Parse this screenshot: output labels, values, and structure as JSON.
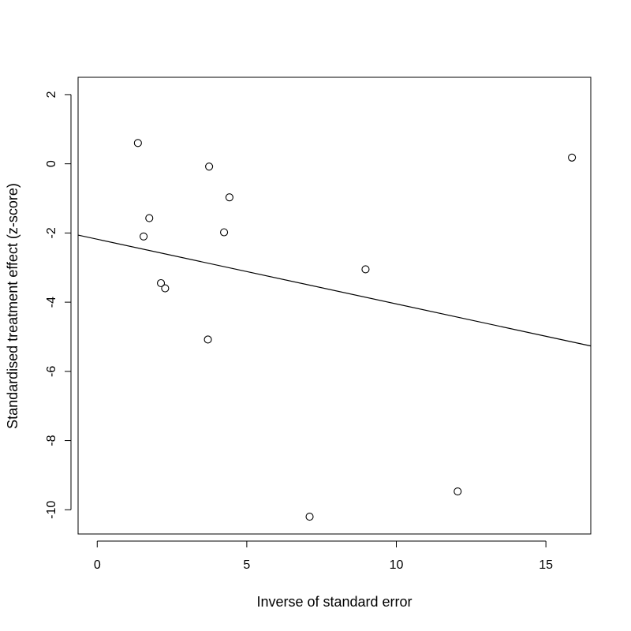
{
  "chart_data": {
    "type": "scatter",
    "title": "",
    "xlabel": "Inverse of standard error",
    "ylabel": "Standardised treatment effect (z-score)",
    "xlim": [
      -0.64,
      16.5
    ],
    "ylim": [
      -10.7,
      2.5
    ],
    "x_ticks": [
      0,
      5,
      10,
      15
    ],
    "y_ticks": [
      2,
      0,
      -2,
      -4,
      -6,
      -8,
      -10
    ],
    "grid": false,
    "legend": "none",
    "points": [
      {
        "x": 1.36,
        "y": 0.6
      },
      {
        "x": 1.74,
        "y": -1.57
      },
      {
        "x": 1.55,
        "y": -2.1
      },
      {
        "x": 2.13,
        "y": -3.45
      },
      {
        "x": 2.27,
        "y": -3.6
      },
      {
        "x": 3.74,
        "y": -0.08
      },
      {
        "x": 3.7,
        "y": -5.08
      },
      {
        "x": 4.42,
        "y": -0.97
      },
      {
        "x": 4.24,
        "y": -1.98
      },
      {
        "x": 7.1,
        "y": -10.2
      },
      {
        "x": 8.97,
        "y": -3.05
      },
      {
        "x": 12.05,
        "y": -9.47
      },
      {
        "x": 15.87,
        "y": 0.18
      }
    ],
    "fit_line": {
      "intercept": -2.18,
      "slope": -0.187
    },
    "colors": {
      "points": "#000000",
      "line": "#000000",
      "frame": "#000000",
      "background": "#ffffff"
    }
  }
}
